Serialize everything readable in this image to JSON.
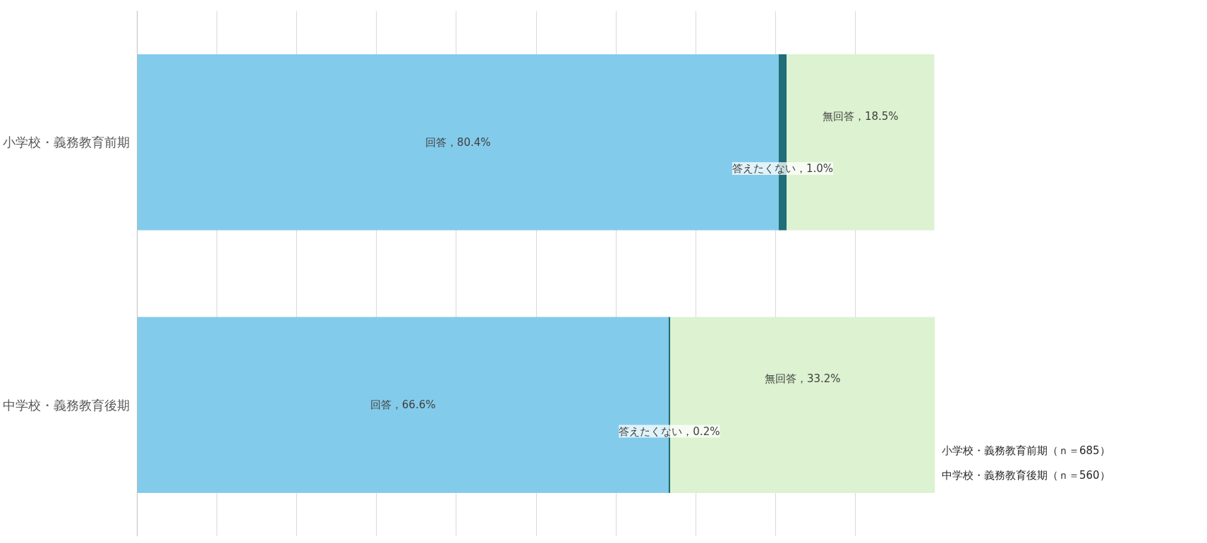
{
  "chart_data": {
    "type": "bar",
    "orientation": "horizontal",
    "stacked": true,
    "categories": [
      "小学校・義務教育前期",
      "中学校・義務教育後期"
    ],
    "series": [
      {
        "color": "#83cbeb",
        "values": [
          80.4,
          66.6
        ],
        "value_labels": [
          "回答，80.4%",
          "回答，66.6%"
        ]
      },
      {
        "color": "#1f6e7a",
        "values": [
          1.0,
          0.2
        ],
        "value_labels": [
          "答えたくない，1.0%",
          "答えたくない，0.2%"
        ]
      },
      {
        "color": "#dcf2d0",
        "values": [
          18.5,
          33.2
        ],
        "value_labels": [
          "無回答，18.5%",
          "無回答，33.2%"
        ]
      }
    ],
    "xlim": [
      0,
      100
    ],
    "xticks": [
      {
        "value": 0,
        "label": null
      },
      {
        "value": 10,
        "label": null
      },
      {
        "value": 20,
        "label": null
      },
      {
        "value": 30,
        "label": null
      },
      {
        "value": 40,
        "label": null
      },
      {
        "value": 50,
        "label": null
      },
      {
        "value": 60,
        "label": null
      },
      {
        "value": 70,
        "label": null
      },
      {
        "value": 80,
        "label": null
      },
      {
        "value": 90,
        "label": null
      }
    ],
    "tick_labels": "y",
    "grid": "x",
    "annotations": [
      "小学校・義務教育前期（ｎ＝685）",
      "中学校・義務教育後期（ｎ＝560）"
    ]
  }
}
